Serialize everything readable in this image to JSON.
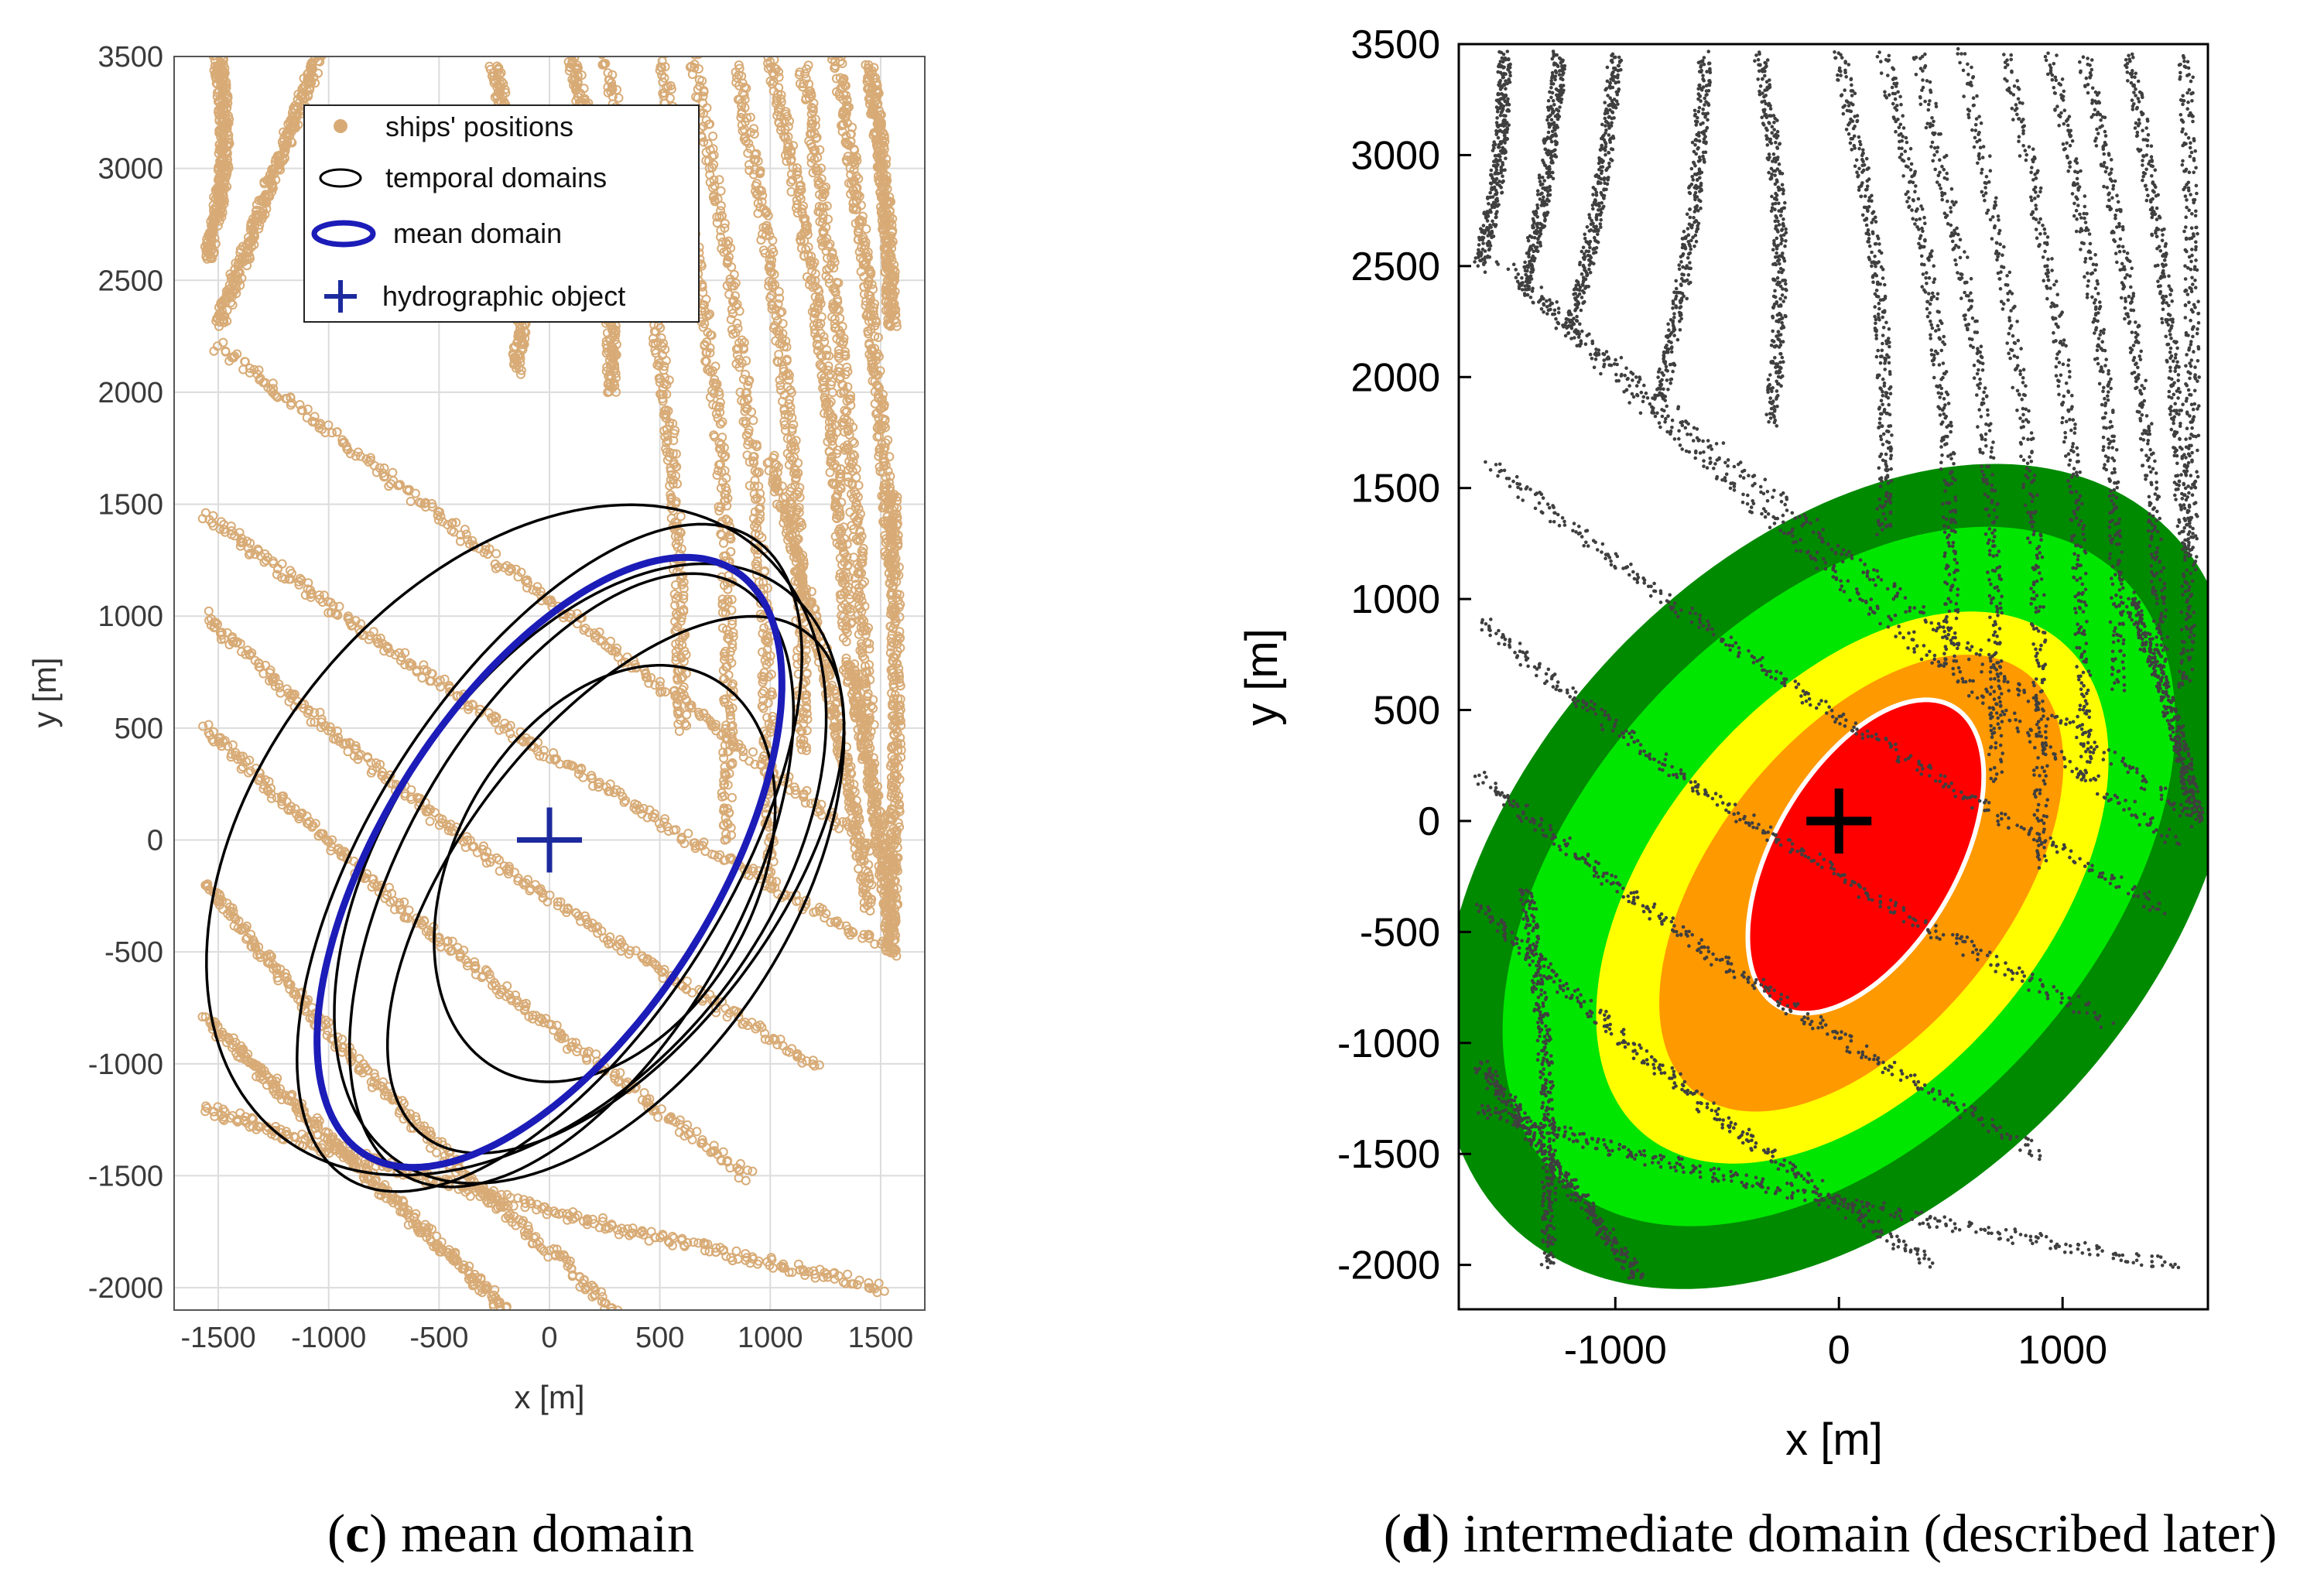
{
  "colors": {
    "ships_positions": "#d8ab76",
    "temporal_domains": "#000000",
    "mean_domain": "#1c1cb8",
    "hydrographic_object": "#1c2a9e",
    "tracks_d": "#3f3f3f",
    "zone_dark_green": "#008a00",
    "zone_green": "#00e600",
    "zone_yellow": "#ffff00",
    "zone_orange": "#ff9900",
    "zone_red": "#ff0000",
    "zone_boundary": "#ffffff"
  },
  "chart_data": [
    {
      "type": "scatter",
      "panel": "c",
      "caption_letter": "c",
      "caption_text": " mean domain",
      "xlabel": "x [m]",
      "ylabel": "y [m]",
      "xlim": [
        -1700,
        1700
      ],
      "ylim": [
        -2100,
        3500
      ],
      "xticks": [
        -1500,
        -1000,
        -500,
        0,
        500,
        1000,
        1500
      ],
      "yticks": [
        -2000,
        -1500,
        -1000,
        -500,
        0,
        500,
        1000,
        1500,
        2000,
        2500,
        3000,
        3500
      ],
      "grid": true,
      "legend_position": "top-right",
      "legend": [
        "ships' positions",
        "temporal domains",
        "mean domain",
        "hydrographic object"
      ],
      "hydrographic_object": {
        "x": 0,
        "y": 0
      },
      "mean_domain": {
        "cx": 0,
        "cy": -100,
        "a": 1550,
        "b": 750,
        "angle_deg": 33
      },
      "temporal_domains": [
        {
          "cx": 180,
          "cy": -150,
          "a": 1550,
          "b": 920,
          "angle_deg": 34
        },
        {
          "cx": 0,
          "cy": -80,
          "a": 1700,
          "b": 800,
          "angle_deg": 33
        },
        {
          "cx": 100,
          "cy": -180,
          "a": 1520,
          "b": 760,
          "angle_deg": 30
        },
        {
          "cx": -150,
          "cy": 0,
          "a": 1700,
          "b": 1150,
          "angle_deg": 40
        },
        {
          "cx": 300,
          "cy": -200,
          "a": 1420,
          "b": 700,
          "angle_deg": 38
        },
        {
          "cx": 250,
          "cy": -150,
          "a": 1000,
          "b": 680,
          "angle_deg": 30
        }
      ],
      "ship_tracks": [
        {
          "x0": -1500,
          "y0": 2200,
          "x1": 1550,
          "y1": -100,
          "bend": 0
        },
        {
          "x0": -1550,
          "y0": 1450,
          "x1": 1550,
          "y1": -500,
          "bend": -150
        },
        {
          "x0": -1550,
          "y0": 1000,
          "x1": 1200,
          "y1": -1000,
          "bend": -200
        },
        {
          "x0": -1550,
          "y0": 500,
          "x1": 900,
          "y1": -1500,
          "bend": -100
        },
        {
          "x0": -1550,
          "y0": -200,
          "x1": 300,
          "y1": -2100,
          "bend": -100
        },
        {
          "x0": -1550,
          "y0": -800,
          "x1": -200,
          "y1": -2100,
          "bend": 0
        },
        {
          "x0": -1550,
          "y0": -1200,
          "x1": 1500,
          "y1": -2000,
          "bend": -200
        },
        {
          "x0": -1500,
          "y0": 3500,
          "x1": -1550,
          "y1": 2600,
          "bend": 50
        },
        {
          "x0": -1050,
          "y0": 3500,
          "x1": -1500,
          "y1": 2300,
          "bend": 0
        },
        {
          "x0": -250,
          "y0": 3450,
          "x1": -150,
          "y1": 2100,
          "bend": 80
        },
        {
          "x0": 100,
          "y0": 3500,
          "x1": 280,
          "y1": 2000,
          "bend": 60
        },
        {
          "x0": 250,
          "y0": 3500,
          "x1": 600,
          "y1": 500,
          "bend": 100
        },
        {
          "x0": 500,
          "y0": 3500,
          "x1": 800,
          "y1": 0,
          "bend": 120
        },
        {
          "x0": 650,
          "y0": 3500,
          "x1": 1000,
          "y1": -200,
          "bend": 100
        },
        {
          "x0": 850,
          "y0": 3450,
          "x1": 1150,
          "y1": 400,
          "bend": 80
        },
        {
          "x0": 1000,
          "y0": 3500,
          "x1": 1350,
          "y1": 900,
          "bend": 60
        },
        {
          "x0": 1150,
          "y0": 3450,
          "x1": 1450,
          "y1": 500,
          "bend": 40
        },
        {
          "x0": 1300,
          "y0": 3500,
          "x1": 1550,
          "y1": 1200,
          "bend": 30
        },
        {
          "x0": 1450,
          "y0": 3450,
          "x1": 1550,
          "y1": 2300,
          "bend": 20
        },
        {
          "x0": 1550,
          "y0": 1550,
          "x1": 1550,
          "y1": -400,
          "bend": 20
        },
        {
          "x0": 1350,
          "y0": 800,
          "x1": 1550,
          "y1": -500,
          "bend": 30
        },
        {
          "x0": 1000,
          "y0": 1700,
          "x1": 1450,
          "y1": -300,
          "bend": 40
        }
      ]
    },
    {
      "type": "scatter",
      "panel": "d",
      "caption_letter": "d",
      "caption_text": " intermediate domain (described later)",
      "xlabel": "x [m]",
      "ylabel": "y [m]",
      "xlim": [
        -1700,
        1650
      ],
      "ylim": [
        -2200,
        3500
      ],
      "xticks": [
        -1000,
        0,
        1000
      ],
      "yticks": [
        -2000,
        -1500,
        -1000,
        -500,
        0,
        500,
        1000,
        1500,
        2000,
        2500,
        3000,
        3500
      ],
      "grid": false,
      "hydrographic_object": {
        "x": 0,
        "y": 0
      },
      "zones": [
        {
          "name": "dark-green",
          "color_key": "zone_dark_green",
          "cx": 0,
          "cy": -250,
          "a": 2150,
          "b": 1420,
          "angle_deg": 42
        },
        {
          "name": "green",
          "color_key": "zone_green",
          "cx": 0,
          "cy": -250,
          "a": 1850,
          "b": 1150,
          "angle_deg": 42
        },
        {
          "name": "yellow",
          "color_key": "zone_yellow",
          "cx": 60,
          "cy": -300,
          "a": 1450,
          "b": 870,
          "angle_deg": 40
        },
        {
          "name": "orange",
          "color_key": "zone_orange",
          "cx": 100,
          "cy": -280,
          "a": 1200,
          "b": 660,
          "angle_deg": 38
        },
        {
          "name": "red",
          "color_key": "zone_red",
          "cx": 120,
          "cy": -160,
          "a": 780,
          "b": 410,
          "angle_deg": 30
        }
      ],
      "tracks": [
        {
          "x0": -1500,
          "y0": 2500,
          "x1": 1600,
          "y1": 0,
          "bend": -80
        },
        {
          "x0": -1400,
          "y0": 2400,
          "x1": 1500,
          "y1": -100,
          "bend": -120
        },
        {
          "x0": -1550,
          "y0": 1600,
          "x1": 1450,
          "y1": -400,
          "bend": -150
        },
        {
          "x0": -1600,
          "y0": 900,
          "x1": 1200,
          "y1": -900,
          "bend": -200
        },
        {
          "x0": -1600,
          "y0": 200,
          "x1": 900,
          "y1": -1500,
          "bend": -150
        },
        {
          "x0": -1600,
          "y0": -400,
          "x1": 400,
          "y1": -2000,
          "bend": -100
        },
        {
          "x0": -1600,
          "y0": -1100,
          "x1": -900,
          "y1": -2050,
          "bend": 0
        },
        {
          "x0": -1600,
          "y0": -1300,
          "x1": 1500,
          "y1": -2000,
          "bend": -250
        },
        {
          "x0": -1500,
          "y0": 3450,
          "x1": -1600,
          "y1": 2500,
          "bend": 30
        },
        {
          "x0": -1250,
          "y0": 3450,
          "x1": -1400,
          "y1": 2400,
          "bend": 20
        },
        {
          "x0": -1000,
          "y0": 3450,
          "x1": -1200,
          "y1": 2200,
          "bend": 30
        },
        {
          "x0": -600,
          "y0": 3450,
          "x1": -800,
          "y1": 1900,
          "bend": 40
        },
        {
          "x0": -350,
          "y0": 3450,
          "x1": -300,
          "y1": 1800,
          "bend": 60
        },
        {
          "x0": 0,
          "y0": 3450,
          "x1": 200,
          "y1": 1300,
          "bend": 80
        },
        {
          "x0": 200,
          "y0": 3450,
          "x1": 500,
          "y1": 700,
          "bend": 100
        },
        {
          "x0": 350,
          "y0": 3450,
          "x1": 700,
          "y1": 200,
          "bend": 120
        },
        {
          "x0": 550,
          "y0": 3450,
          "x1": 900,
          "y1": -200,
          "bend": 120
        },
        {
          "x0": 750,
          "y0": 3450,
          "x1": 1100,
          "y1": 200,
          "bend": 100
        },
        {
          "x0": 950,
          "y0": 3450,
          "x1": 1250,
          "y1": 600,
          "bend": 80
        },
        {
          "x0": 1100,
          "y0": 3450,
          "x1": 1450,
          "y1": 700,
          "bend": 60
        },
        {
          "x0": 1300,
          "y0": 3450,
          "x1": 1550,
          "y1": 1200,
          "bend": 40
        },
        {
          "x0": 1550,
          "y0": 3450,
          "x1": 1550,
          "y1": 600,
          "bend": 30
        },
        {
          "x0": 1300,
          "y0": 1000,
          "x1": 1600,
          "y1": 0,
          "bend": 30
        },
        {
          "x0": -1400,
          "y0": -300,
          "x1": -1300,
          "y1": -2000,
          "bend": 40
        }
      ]
    }
  ]
}
